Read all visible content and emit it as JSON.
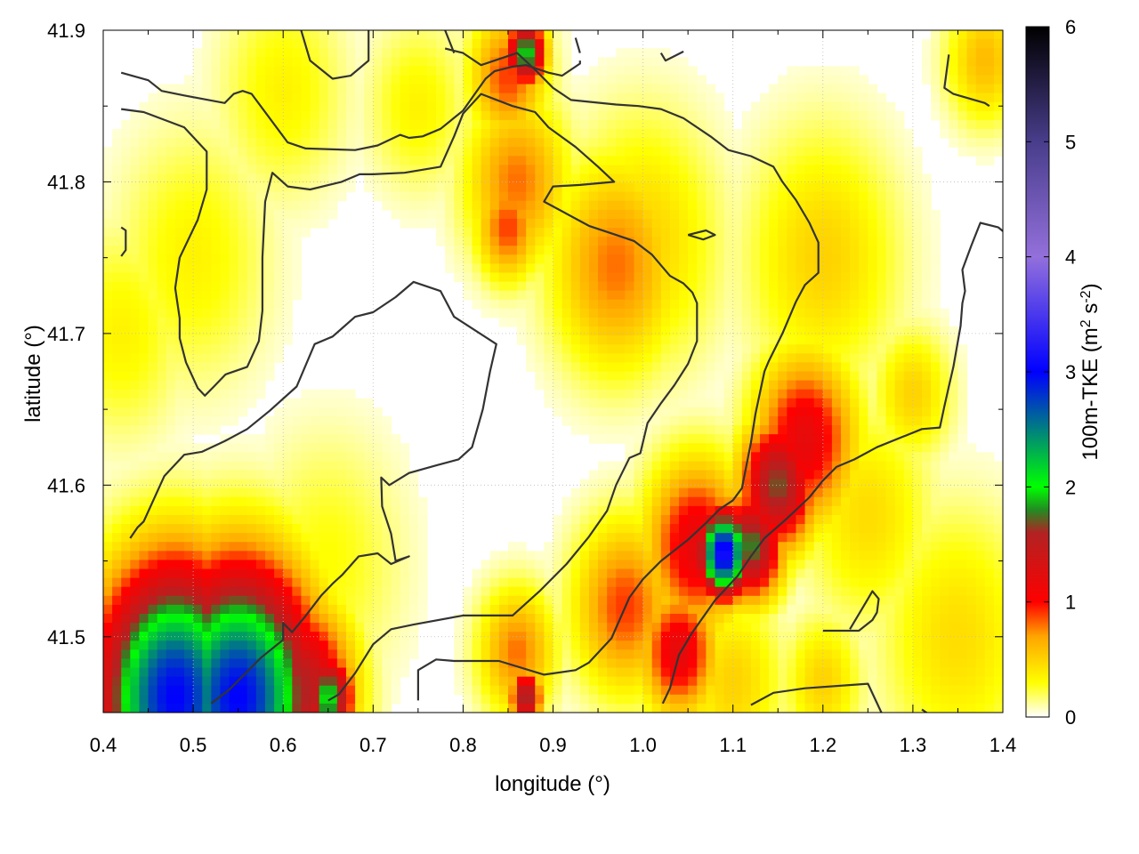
{
  "chart_data": {
    "type": "heatmap",
    "title": "",
    "xlabel": "longitude (°)",
    "ylabel": "latitude (°)",
    "xlim": [
      0.4,
      1.4
    ],
    "ylim": [
      41.45,
      41.9
    ],
    "x_ticks": [
      "0.4",
      "0.5",
      "0.6",
      "0.7",
      "0.8",
      "0.9",
      "1.0",
      "1.1",
      "1.2",
      "1.3",
      "1.4"
    ],
    "y_ticks": [
      "41.5",
      "41.6",
      "41.7",
      "41.8",
      "41.9"
    ],
    "colorbar": {
      "label_main": "100m-TKE (m",
      "label_sup1": "2",
      "label_mid": " s",
      "label_sup2": "-2",
      "label_end": ")",
      "range": [
        0,
        6
      ],
      "ticks": [
        "0",
        "1",
        "2",
        "3",
        "4",
        "5",
        "6"
      ],
      "stops": [
        {
          "v": 0.0,
          "c": "#ffffff"
        },
        {
          "v": 0.3,
          "c": "#ffff00"
        },
        {
          "v": 0.7,
          "c": "#ffa500"
        },
        {
          "v": 1.0,
          "c": "#ff0000"
        },
        {
          "v": 1.6,
          "c": "#b22222"
        },
        {
          "v": 1.8,
          "c": "#228b22"
        },
        {
          "v": 2.0,
          "c": "#00ff00"
        },
        {
          "v": 3.0,
          "c": "#0000ff"
        },
        {
          "v": 4.0,
          "c": "#9370db"
        },
        {
          "v": 5.0,
          "c": "#483d8b"
        },
        {
          "v": 6.0,
          "c": "#000000"
        }
      ]
    },
    "grid": "dotted",
    "tke_hotspots": [
      {
        "lon": 0.48,
        "lat": 41.46,
        "v": 3.0,
        "s": 0.06
      },
      {
        "lon": 0.55,
        "lat": 41.46,
        "v": 3.0,
        "s": 0.06
      },
      {
        "lon": 0.45,
        "lat": 41.47,
        "v": 2.0,
        "s": 0.05
      },
      {
        "lon": 0.62,
        "lat": 41.465,
        "v": 1.6,
        "s": 0.04
      },
      {
        "lon": 0.65,
        "lat": 41.46,
        "v": 2.0,
        "s": 0.02
      },
      {
        "lon": 0.87,
        "lat": 41.885,
        "v": 2.0,
        "s": 0.015
      },
      {
        "lon": 0.85,
        "lat": 41.87,
        "v": 0.9,
        "s": 0.03
      },
      {
        "lon": 0.86,
        "lat": 41.8,
        "v": 0.8,
        "s": 0.04
      },
      {
        "lon": 0.85,
        "lat": 41.77,
        "v": 0.9,
        "s": 0.025
      },
      {
        "lon": 0.97,
        "lat": 41.745,
        "v": 0.8,
        "s": 0.05
      },
      {
        "lon": 1.09,
        "lat": 41.555,
        "v": 3.2,
        "s": 0.02
      },
      {
        "lon": 1.12,
        "lat": 41.56,
        "v": 1.8,
        "s": 0.025
      },
      {
        "lon": 1.06,
        "lat": 41.56,
        "v": 1.2,
        "s": 0.04
      },
      {
        "lon": 1.15,
        "lat": 41.6,
        "v": 1.7,
        "s": 0.03
      },
      {
        "lon": 1.18,
        "lat": 41.63,
        "v": 1.2,
        "s": 0.04
      },
      {
        "lon": 1.04,
        "lat": 41.49,
        "v": 1.2,
        "s": 0.03
      },
      {
        "lon": 0.98,
        "lat": 41.52,
        "v": 0.9,
        "s": 0.04
      },
      {
        "lon": 0.87,
        "lat": 41.46,
        "v": 1.7,
        "s": 0.012
      },
      {
        "lon": 0.86,
        "lat": 41.49,
        "v": 0.8,
        "s": 0.03
      },
      {
        "lon": 1.38,
        "lat": 41.88,
        "v": 0.6,
        "s": 0.03
      },
      {
        "lon": 1.2,
        "lat": 41.75,
        "v": 0.5,
        "s": 0.06
      },
      {
        "lon": 1.0,
        "lat": 41.76,
        "v": 0.5,
        "s": 0.06
      },
      {
        "lon": 0.45,
        "lat": 41.52,
        "v": 0.5,
        "s": 0.05
      },
      {
        "lon": 1.35,
        "lat": 41.5,
        "v": 0.45,
        "s": 0.06
      },
      {
        "lon": 1.25,
        "lat": 41.58,
        "v": 0.45,
        "s": 0.05
      },
      {
        "lon": 0.5,
        "lat": 41.75,
        "v": 0.35,
        "s": 0.06
      },
      {
        "lon": 0.65,
        "lat": 41.55,
        "v": 0.3,
        "s": 0.06
      },
      {
        "lon": 1.3,
        "lat": 41.66,
        "v": 0.5,
        "s": 0.03
      },
      {
        "lon": 0.6,
        "lat": 41.86,
        "v": 0.35,
        "s": 0.05
      },
      {
        "lon": 0.75,
        "lat": 41.85,
        "v": 0.35,
        "s": 0.04
      },
      {
        "lon": 0.42,
        "lat": 41.7,
        "v": 0.35,
        "s": 0.05
      },
      {
        "lon": 1.1,
        "lat": 41.47,
        "v": 0.5,
        "s": 0.04
      },
      {
        "lon": 1.2,
        "lat": 41.47,
        "v": 0.5,
        "s": 0.03
      }
    ],
    "contours": [
      [
        [
          0.42,
          41.872
        ],
        [
          0.45,
          41.867
        ],
        [
          0.465,
          41.86
        ],
        [
          0.49,
          41.857
        ],
        [
          0.535,
          41.852
        ],
        [
          0.545,
          41.858
        ],
        [
          0.555,
          41.86
        ],
        [
          0.565,
          41.858
        ],
        [
          0.605,
          41.826
        ],
        [
          0.625,
          41.822
        ],
        [
          0.68,
          41.821
        ],
        [
          0.705,
          41.824
        ],
        [
          0.73,
          41.831
        ],
        [
          0.74,
          41.829
        ],
        [
          0.755,
          41.83
        ],
        [
          0.775,
          41.835
        ],
        [
          0.8,
          41.847
        ],
        [
          0.825,
          41.868
        ],
        [
          0.835,
          41.873
        ],
        [
          0.855,
          41.876
        ],
        [
          0.87,
          41.877
        ],
        [
          0.885,
          41.874
        ],
        [
          0.895,
          41.872
        ],
        [
          0.91,
          41.87
        ],
        [
          0.93,
          41.878
        ],
        [
          0.93,
          41.88
        ]
      ],
      [
        [
          0.42,
          41.848
        ],
        [
          0.445,
          41.846
        ],
        [
          0.49,
          41.836
        ],
        [
          0.515,
          41.82
        ],
        [
          0.515,
          41.805
        ],
        [
          0.515,
          41.795
        ],
        [
          0.505,
          41.775
        ],
        [
          0.485,
          41.75
        ],
        [
          0.48,
          41.73
        ],
        [
          0.485,
          41.71
        ],
        [
          0.485,
          41.697
        ],
        [
          0.492,
          41.681
        ],
        [
          0.505,
          41.664
        ],
        [
          0.513,
          41.659
        ],
        [
          0.523,
          41.665
        ],
        [
          0.536,
          41.673
        ],
        [
          0.56,
          41.678
        ],
        [
          0.573,
          41.695
        ],
        [
          0.577,
          41.715
        ],
        [
          0.577,
          41.75
        ],
        [
          0.58,
          41.787
        ],
        [
          0.588,
          41.806
        ],
        [
          0.605,
          41.797
        ],
        [
          0.63,
          41.795
        ],
        [
          0.665,
          41.8
        ],
        [
          0.685,
          41.805
        ],
        [
          0.7,
          41.805
        ],
        [
          0.735,
          41.806
        ],
        [
          0.775,
          41.81
        ],
        [
          0.79,
          41.83
        ],
        [
          0.8,
          41.845
        ],
        [
          0.82,
          41.858
        ],
        [
          0.855,
          41.85
        ],
        [
          0.88,
          41.846
        ],
        [
          0.895,
          41.836
        ],
        [
          0.925,
          41.823
        ],
        [
          0.95,
          41.81
        ],
        [
          0.968,
          41.8
        ],
        [
          0.93,
          41.798
        ],
        [
          0.9,
          41.797
        ],
        [
          0.89,
          41.787
        ],
        [
          0.94,
          41.771
        ],
        [
          0.97,
          41.765
        ],
        [
          0.99,
          41.761
        ],
        [
          1.01,
          41.752
        ],
        [
          1.03,
          41.738
        ],
        [
          1.045,
          41.733
        ],
        [
          1.055,
          41.727
        ],
        [
          1.06,
          41.72
        ],
        [
          1.06,
          41.708
        ],
        [
          1.06,
          41.695
        ],
        [
          1.05,
          41.68
        ],
        [
          1.035,
          41.666
        ],
        [
          1.02,
          41.654
        ],
        [
          1.005,
          41.641
        ],
        [
          0.997,
          41.621
        ],
        [
          0.985,
          41.618
        ],
        [
          0.97,
          41.6
        ],
        [
          0.96,
          41.583
        ],
        [
          0.94,
          41.566
        ],
        [
          0.915,
          41.548
        ],
        [
          0.885,
          41.53
        ],
        [
          0.855,
          41.514
        ],
        [
          0.8,
          41.514
        ],
        [
          0.745,
          41.508
        ],
        [
          0.72,
          41.505
        ],
        [
          0.7,
          41.495
        ],
        [
          0.68,
          41.476
        ],
        [
          0.662,
          41.462
        ],
        [
          0.65,
          41.458
        ]
      ],
      [
        [
          0.43,
          41.565
        ],
        [
          0.438,
          41.572
        ],
        [
          0.445,
          41.576
        ],
        [
          0.468,
          41.606
        ],
        [
          0.49,
          41.62
        ],
        [
          0.51,
          41.622
        ],
        [
          0.535,
          41.629
        ],
        [
          0.56,
          41.637
        ],
        [
          0.585,
          41.649
        ],
        [
          0.615,
          41.665
        ],
        [
          0.635,
          41.693
        ],
        [
          0.655,
          41.698
        ],
        [
          0.68,
          41.711
        ],
        [
          0.7,
          41.714
        ],
        [
          0.725,
          41.724
        ],
        [
          0.745,
          41.734
        ],
        [
          0.775,
          41.728
        ],
        [
          0.79,
          41.711
        ],
        [
          0.837,
          41.693
        ],
        [
          0.83,
          41.675
        ],
        [
          0.822,
          41.65
        ],
        [
          0.81,
          41.625
        ],
        [
          0.795,
          41.617
        ],
        [
          0.77,
          41.613
        ],
        [
          0.74,
          41.608
        ],
        [
          0.718,
          41.6
        ],
        [
          0.709,
          41.605
        ],
        [
          0.71,
          41.586
        ],
        [
          0.72,
          41.568
        ],
        [
          0.725,
          41.55
        ],
        [
          0.74,
          41.553
        ],
        [
          0.72,
          41.548
        ],
        [
          0.705,
          41.555
        ],
        [
          0.684,
          41.553
        ],
        [
          0.666,
          41.541
        ],
        [
          0.655,
          41.535
        ],
        [
          0.642,
          41.527
        ],
        [
          0.624,
          41.513
        ],
        [
          0.61,
          41.503
        ],
        [
          0.6,
          41.509
        ],
        [
          0.6,
          41.498
        ],
        [
          0.575,
          41.486
        ],
        [
          0.555,
          41.474
        ],
        [
          0.54,
          41.465
        ],
        [
          0.52,
          41.456
        ]
      ],
      [
        [
          0.75,
          41.458
        ],
        [
          0.75,
          41.478
        ],
        [
          0.77,
          41.485
        ],
        [
          0.79,
          41.484
        ],
        [
          0.84,
          41.484
        ],
        [
          0.89,
          41.475
        ],
        [
          0.925,
          41.478
        ],
        [
          0.94,
          41.483
        ],
        [
          0.965,
          41.499
        ],
        [
          0.985,
          41.526
        ],
        [
          1.0,
          41.538
        ],
        [
          1.02,
          41.55
        ],
        [
          1.05,
          41.564
        ],
        [
          1.07,
          41.575
        ],
        [
          1.085,
          41.584
        ],
        [
          1.1,
          41.59
        ],
        [
          1.11,
          41.598
        ],
        [
          1.12,
          41.628
        ],
        [
          1.125,
          41.647
        ],
        [
          1.135,
          41.675
        ],
        [
          1.14,
          41.682
        ],
        [
          1.155,
          41.7
        ],
        [
          1.17,
          41.721
        ],
        [
          1.18,
          41.732
        ],
        [
          1.195,
          41.74
        ],
        [
          1.195,
          41.76
        ],
        [
          1.185,
          41.773
        ],
        [
          1.17,
          41.788
        ],
        [
          1.155,
          41.8
        ],
        [
          1.145,
          41.81
        ],
        [
          1.12,
          41.817
        ],
        [
          1.095,
          41.821
        ],
        [
          1.075,
          41.83
        ],
        [
          1.045,
          41.842
        ],
        [
          1.02,
          41.848
        ],
        [
          0.995,
          41.85
        ],
        [
          0.97,
          41.851
        ],
        [
          0.92,
          41.854
        ],
        [
          0.9,
          41.862
        ],
        [
          0.88,
          41.874
        ],
        [
          0.86,
          41.885
        ],
        [
          0.835,
          41.88
        ],
        [
          0.82,
          41.877
        ],
        [
          0.8,
          41.885
        ],
        [
          0.78,
          41.888
        ]
      ],
      [
        [
          1.022,
          41.456
        ],
        [
          1.03,
          41.466
        ],
        [
          1.04,
          41.488
        ],
        [
          1.055,
          41.503
        ],
        [
          1.08,
          41.524
        ],
        [
          1.105,
          41.54
        ],
        [
          1.12,
          41.553
        ],
        [
          1.135,
          41.565
        ],
        [
          1.16,
          41.578
        ],
        [
          1.185,
          41.592
        ],
        [
          1.2,
          41.603
        ],
        [
          1.215,
          41.612
        ],
        [
          1.235,
          41.617
        ],
        [
          1.26,
          41.625
        ],
        [
          1.31,
          41.637
        ],
        [
          1.33,
          41.638
        ],
        [
          1.335,
          41.652
        ],
        [
          1.34,
          41.665
        ],
        [
          1.345,
          41.678
        ],
        [
          1.353,
          41.705
        ],
        [
          1.355,
          41.72
        ],
        [
          1.358,
          41.728
        ],
        [
          1.355,
          41.742
        ],
        [
          1.365,
          41.758
        ],
        [
          1.375,
          41.773
        ],
        [
          1.395,
          41.77
        ],
        [
          1.405,
          41.765
        ]
      ],
      [
        [
          1.12,
          41.455
        ],
        [
          1.145,
          41.463
        ],
        [
          1.18,
          41.466
        ],
        [
          1.25,
          41.469
        ],
        [
          1.265,
          41.45
        ]
      ],
      [
        [
          1.2,
          41.504
        ],
        [
          1.24,
          41.504
        ],
        [
          1.255,
          41.511
        ],
        [
          1.26,
          41.516
        ],
        [
          1.262,
          41.525
        ],
        [
          1.255,
          41.53
        ],
        [
          1.25,
          41.525
        ],
        [
          1.23,
          41.505
        ]
      ],
      [
        [
          1.34,
          41.884
        ],
        [
          1.335,
          41.862
        ],
        [
          1.345,
          41.858
        ],
        [
          1.38,
          41.852
        ],
        [
          1.385,
          41.85
        ]
      ],
      [
        [
          1.05,
          41.765
        ],
        [
          1.07,
          41.768
        ],
        [
          1.08,
          41.765
        ],
        [
          1.067,
          41.762
        ],
        [
          1.05,
          41.765
        ]
      ],
      [
        [
          0.42,
          41.77
        ],
        [
          0.425,
          41.768
        ],
        [
          0.425,
          41.755
        ],
        [
          0.42,
          41.751
        ]
      ],
      [
        [
          0.62,
          41.9
        ],
        [
          0.63,
          41.88
        ],
        [
          0.655,
          41.868
        ],
        [
          0.675,
          41.87
        ],
        [
          0.695,
          41.88
        ],
        [
          0.695,
          41.9
        ]
      ],
      [
        [
          0.78,
          41.9
        ],
        [
          0.79,
          41.885
        ]
      ],
      [
        [
          0.925,
          41.895
        ],
        [
          0.93,
          41.885
        ]
      ],
      [
        [
          1.02,
          41.885
        ],
        [
          1.025,
          41.88
        ],
        [
          1.045,
          41.886
        ]
      ],
      [
        [
          1.31,
          41.452
        ],
        [
          1.315,
          41.45
        ],
        [
          1.32,
          41.447
        ]
      ]
    ]
  }
}
